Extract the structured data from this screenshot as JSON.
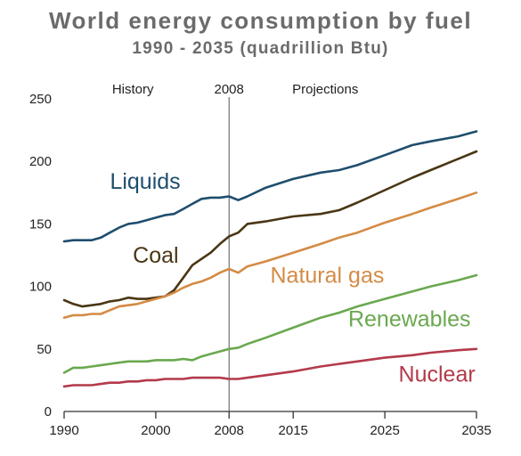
{
  "chart_data": {
    "type": "line",
    "title": "World energy consumption by fuel",
    "subtitle": "1990 - 2035 (quadrillion Btu)",
    "xlabel": "",
    "ylabel": "",
    "xlim": [
      1990,
      2035
    ],
    "ylim": [
      0,
      250
    ],
    "x_ticks": [
      1990,
      2000,
      2008,
      2015,
      2025,
      2035
    ],
    "x_tick_labels": [
      "1990",
      "2000",
      "2008",
      "2015",
      "2025",
      "2035"
    ],
    "y_ticks": [
      0,
      50,
      100,
      150,
      200,
      250
    ],
    "y_tick_labels": [
      "0",
      "50",
      "100",
      "150",
      "200",
      "250"
    ],
    "divider": {
      "x": 2008,
      "label": "2008"
    },
    "regions": {
      "left": "History",
      "right": "Projections"
    },
    "grid": false,
    "legend": "inline labels",
    "series": [
      {
        "name": "Liquids",
        "color": "#1f4e6e",
        "label_at": [
          1995,
          178
        ],
        "x": [
          1990,
          1991,
          1992,
          1993,
          1994,
          1995,
          1996,
          1997,
          1998,
          1999,
          2000,
          2001,
          2002,
          2003,
          2004,
          2005,
          2006,
          2007,
          2008,
          2009,
          2010,
          2012,
          2015,
          2018,
          2020,
          2022,
          2025,
          2028,
          2030,
          2033,
          2035
        ],
        "y": [
          136,
          137,
          137,
          137,
          139,
          143,
          147,
          150,
          151,
          153,
          155,
          157,
          158,
          162,
          166,
          170,
          171,
          171,
          172,
          169,
          172,
          179,
          186,
          191,
          193,
          197,
          205,
          213,
          216,
          220,
          224
        ]
      },
      {
        "name": "Coal",
        "color": "#4a3614",
        "label_at": [
          1997.5,
          119
        ],
        "x": [
          1990,
          1991,
          1992,
          1993,
          1994,
          1995,
          1996,
          1997,
          1998,
          1999,
          2000,
          2001,
          2002,
          2003,
          2004,
          2005,
          2006,
          2007,
          2008,
          2009,
          2010,
          2012,
          2015,
          2018,
          2020,
          2022,
          2025,
          2028,
          2030,
          2033,
          2035
        ],
        "y": [
          89,
          86,
          84,
          85,
          86,
          88,
          89,
          91,
          90,
          90,
          91,
          92,
          97,
          107,
          117,
          122,
          127,
          134,
          140,
          143,
          150,
          152,
          156,
          158,
          161,
          167,
          177,
          187,
          193,
          202,
          208
        ]
      },
      {
        "name": "Natural gas",
        "color": "#d48b45",
        "label_at": [
          2012.5,
          103
        ],
        "x": [
          1990,
          1991,
          1992,
          1993,
          1994,
          1995,
          1996,
          1997,
          1998,
          1999,
          2000,
          2001,
          2002,
          2003,
          2004,
          2005,
          2006,
          2007,
          2008,
          2009,
          2010,
          2012,
          2015,
          2018,
          2020,
          2022,
          2025,
          2028,
          2030,
          2033,
          2035
        ],
        "y": [
          75,
          77,
          77,
          78,
          78,
          81,
          84,
          85,
          86,
          88,
          90,
          92,
          95,
          99,
          102,
          104,
          107,
          111,
          114,
          111,
          116,
          120,
          127,
          134,
          139,
          143,
          151,
          158,
          163,
          170,
          175
        ]
      },
      {
        "name": "Renewables",
        "color": "#6aa84f",
        "label_at": [
          2021,
          68
        ],
        "x": [
          1990,
          1991,
          1992,
          1993,
          1994,
          1995,
          1996,
          1997,
          1998,
          1999,
          2000,
          2001,
          2002,
          2003,
          2004,
          2005,
          2006,
          2007,
          2008,
          2009,
          2010,
          2012,
          2015,
          2018,
          2020,
          2022,
          2025,
          2028,
          2030,
          2033,
          2035
        ],
        "y": [
          31,
          35,
          35,
          36,
          37,
          38,
          39,
          40,
          40,
          40,
          41,
          41,
          41,
          42,
          41,
          44,
          46,
          48,
          50,
          51,
          54,
          59,
          67,
          75,
          79,
          84,
          90,
          96,
          100,
          105,
          109
        ]
      },
      {
        "name": "Nuclear",
        "color": "#b33a4a",
        "label_at": [
          2026.5,
          24
        ],
        "x": [
          1990,
          1991,
          1992,
          1993,
          1994,
          1995,
          1996,
          1997,
          1998,
          1999,
          2000,
          2001,
          2002,
          2003,
          2004,
          2005,
          2006,
          2007,
          2008,
          2009,
          2010,
          2012,
          2015,
          2018,
          2020,
          2022,
          2025,
          2028,
          2030,
          2033,
          2035
        ],
        "y": [
          20,
          21,
          21,
          21,
          22,
          23,
          23,
          24,
          24,
          25,
          25,
          26,
          26,
          26,
          27,
          27,
          27,
          27,
          26,
          26,
          27,
          29,
          32,
          36,
          38,
          40,
          43,
          45,
          47,
          49,
          50
        ]
      }
    ]
  }
}
